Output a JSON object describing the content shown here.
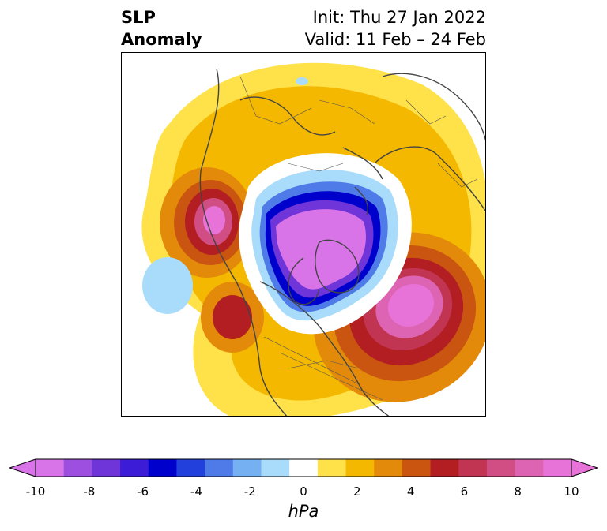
{
  "header": {
    "title_line1": "SLP",
    "title_line2": "Anomaly",
    "init": "Init: Thu 27 Jan 2022",
    "valid": "Valid: 11 Feb – 24 Feb"
  },
  "colorbar": {
    "unit": "hPa",
    "min": -10,
    "max": 10,
    "tick_labels": [
      "-10",
      "-8",
      "-6",
      "-4",
      "-2",
      "0",
      "2",
      "4",
      "6",
      "8",
      "10"
    ],
    "levels": [
      -10,
      -9,
      -8,
      -7,
      -6,
      -5,
      -4,
      -3,
      -2,
      -1,
      1,
      2,
      3,
      4,
      5,
      6,
      7,
      8,
      9,
      10
    ],
    "colors": [
      "#d873e8",
      "#9d50df",
      "#6f35d8",
      "#3c1cd6",
      "#0000cd",
      "#2241dc",
      "#4f7be8",
      "#75b1f2",
      "#a9dcfa",
      "#ffffff",
      "#ffe14a",
      "#f4b800",
      "#e38a0a",
      "#c95511",
      "#b21e22",
      "#c13553",
      "#d14e84",
      "#dd63b3",
      "#e873d8"
    ],
    "extend_colors": {
      "low": "#d873e8",
      "high": "#e873d8"
    }
  },
  "map": {
    "projection": "north polar stereographic",
    "features": [
      "negative anomaly over Arctic / Greenland",
      "positive anomaly over North Atlantic",
      "positive anomaly over Gulf of Alaska"
    ]
  }
}
